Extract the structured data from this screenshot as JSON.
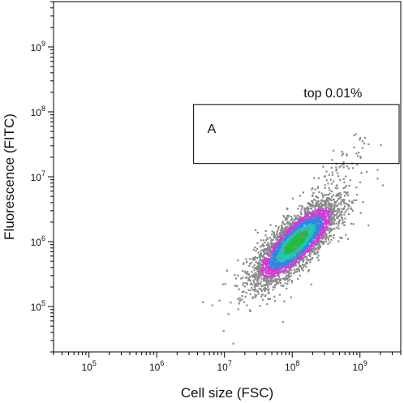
{
  "chart_data": {
    "type": "scatter",
    "subtype": "flow-cytometry density dot plot",
    "xlabel": "Cell size (FSC)",
    "ylabel": "Fluorescence (FITC)",
    "x_scale": "log",
    "y_scale": "log",
    "xlim": [
      30000,
      4000000000
    ],
    "ylim": [
      20000,
      5000000000
    ],
    "x_ticks": [
      {
        "value": 100000,
        "base": "10",
        "exp": "5"
      },
      {
        "value": 1000000,
        "base": "10",
        "exp": "6"
      },
      {
        "value": 10000000,
        "base": "10",
        "exp": "7"
      },
      {
        "value": 100000000,
        "base": "10",
        "exp": "8"
      },
      {
        "value": 1000000000,
        "base": "10",
        "exp": "9"
      }
    ],
    "y_ticks": [
      {
        "value": 100000,
        "base": "10",
        "exp": "5"
      },
      {
        "value": 1000000,
        "base": "10",
        "exp": "6"
      },
      {
        "value": 10000000,
        "base": "10",
        "exp": "7"
      },
      {
        "value": 100000000,
        "base": "10",
        "exp": "8"
      },
      {
        "value": 1000000000,
        "base": "10",
        "exp": "9"
      }
    ],
    "grid": false,
    "gate": {
      "label": "A",
      "annotation": "top 0.01%",
      "x_range": [
        3500000,
        4000000000
      ],
      "y_range": [
        16000000,
        130000000
      ]
    },
    "population": {
      "center": {
        "x": 110000000,
        "y": 1000000
      },
      "density_colors": {
        "low": "#8a8a8a",
        "medium": "#d13ad9",
        "high": "#2f86e8",
        "very_high": "#22c5b8",
        "peak": "#1fbf3a"
      }
    }
  }
}
